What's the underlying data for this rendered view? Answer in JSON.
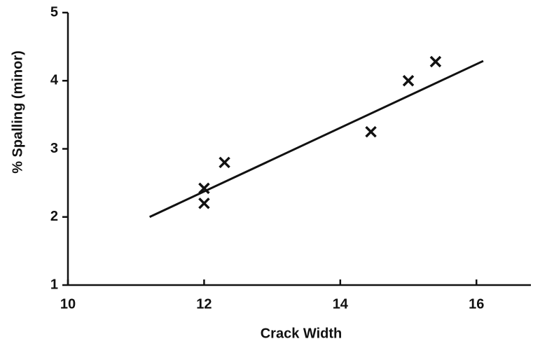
{
  "chart_data": {
    "type": "scatter",
    "x_label": "Crack Width",
    "y_label": "% Spalling (minor)",
    "x": [
      12.0,
      12.0,
      12.3,
      14.45,
      15.0,
      15.4
    ],
    "values": [
      2.2,
      2.42,
      2.8,
      3.25,
      4.0,
      4.28
    ],
    "marker": "x",
    "color": "#111111",
    "fit_line": {
      "x": [
        11.2,
        16.1
      ],
      "values": [
        2.0,
        4.29
      ],
      "color": "#111111"
    },
    "xlim": [
      10,
      16.8
    ],
    "xticks": [
      10,
      12,
      14,
      16
    ],
    "ylim": [
      1,
      5
    ],
    "yticks": [
      1,
      2,
      3,
      4,
      5
    ],
    "grid": false
  }
}
